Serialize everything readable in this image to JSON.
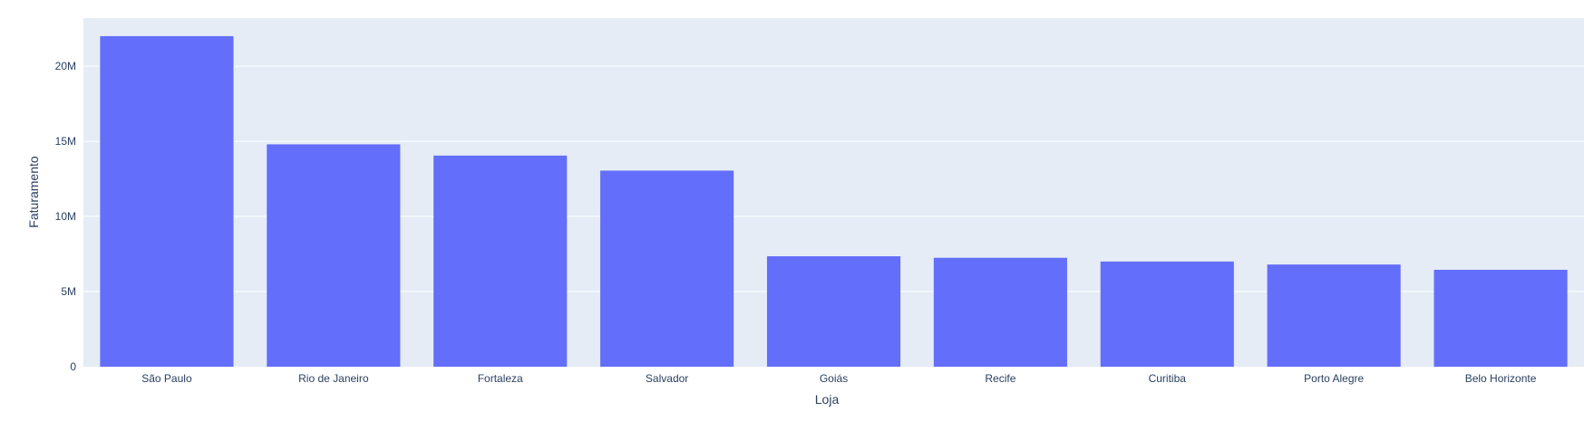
{
  "chart_data": {
    "type": "bar",
    "title": "",
    "xlabel": "Loja",
    "ylabel": "Faturamento",
    "categories": [
      "São Paulo",
      "Rio de Janeiro",
      "Fortaleza",
      "Salvador",
      "Goiás",
      "Recife",
      "Curitiba",
      "Porto Alegre",
      "Belo Horizonte"
    ],
    "values": [
      22000000,
      14800000,
      14050000,
      13050000,
      7350000,
      7250000,
      7000000,
      6800000,
      6450000
    ],
    "ylim": [
      0,
      23200000
    ],
    "yticks": [
      {
        "value": 0,
        "label": "0"
      },
      {
        "value": 5000000,
        "label": "5M"
      },
      {
        "value": 10000000,
        "label": "10M"
      },
      {
        "value": 15000000,
        "label": "15M"
      },
      {
        "value": 20000000,
        "label": "20M"
      }
    ],
    "grid": true,
    "colors": {
      "bar": "#636efa",
      "plot_bg": "#e5ecf6",
      "grid": "#ffffff",
      "text": "#2a3f5f"
    }
  }
}
